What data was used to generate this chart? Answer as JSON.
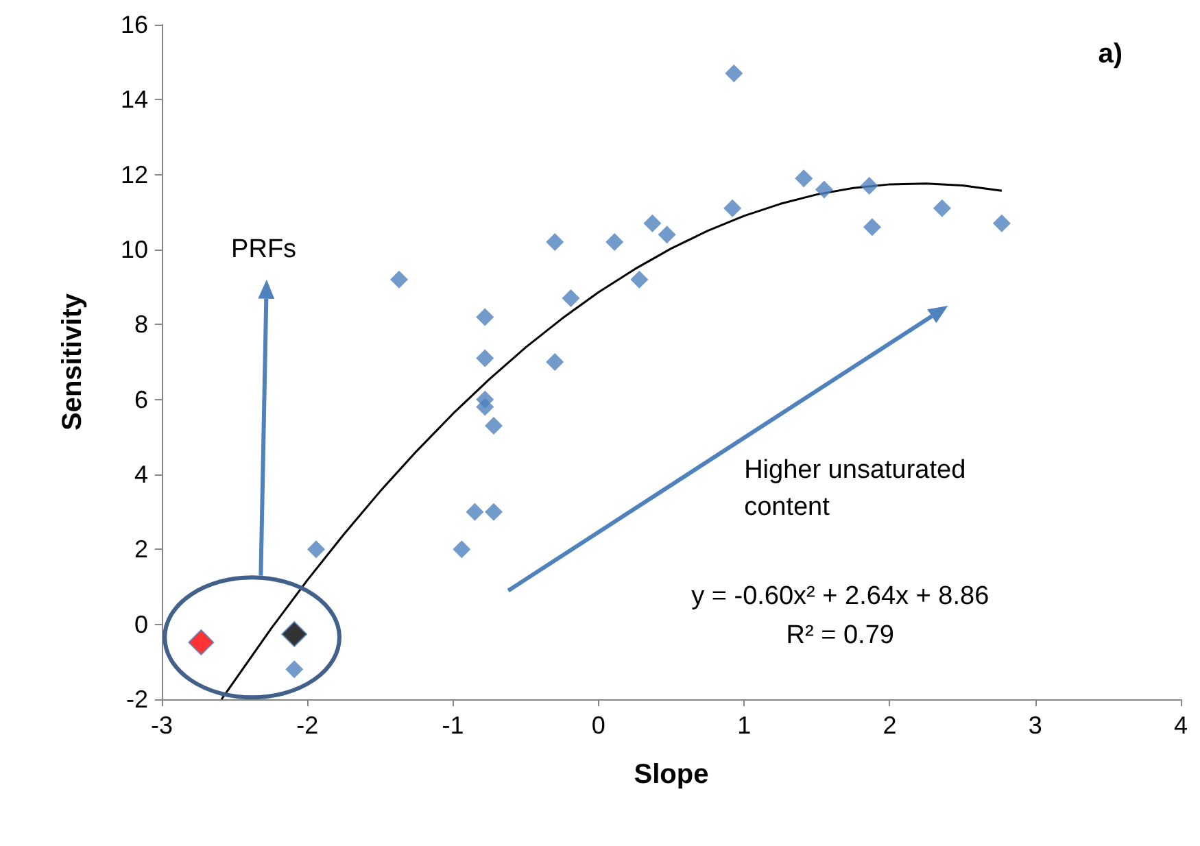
{
  "chart_data": {
    "type": "scatter",
    "xlabel": "Slope",
    "ylabel": "Sensitivity",
    "xlim": [
      -3,
      4
    ],
    "xticks": [
      -3,
      -2,
      -1,
      0,
      1,
      2,
      3,
      4
    ],
    "ylim": [
      -2,
      16
    ],
    "yticks": [
      -2,
      0,
      2,
      4,
      6,
      8,
      10,
      12,
      14,
      16
    ],
    "grid": false,
    "marker": "diamond",
    "series": [
      {
        "color": "#4f81bd",
        "x": [
          -2.09,
          -1.94,
          -1.37,
          -0.94,
          -0.85,
          -0.72,
          -0.78,
          -0.78,
          -0.78,
          -0.78,
          -0.72,
          -0.3,
          -0.3,
          -0.19,
          0.11,
          0.28,
          0.37,
          0.47,
          0.93,
          0.92,
          1.41,
          1.55,
          1.86,
          1.88,
          2.36,
          2.77
        ],
        "values": [
          -1.2,
          2.0,
          9.2,
          2.0,
          3.0,
          3.0,
          8.2,
          7.1,
          6.0,
          5.8,
          5.3,
          7.0,
          10.2,
          8.7,
          10.2,
          9.2,
          10.7,
          10.4,
          14.7,
          11.1,
          11.9,
          11.6,
          11.7,
          10.6,
          11.1,
          10.7
        ]
      },
      {
        "color": "#ff0000",
        "x": [
          -2.73
        ],
        "values": [
          -0.48
        ]
      },
      {
        "color": "#000000",
        "x": [
          -2.09
        ],
        "values": [
          -0.26
        ]
      },
      {
        "type": "line",
        "color": "#000000",
        "marker": "none",
        "line_style": "solid",
        "x": [
          -2.59,
          -2.25,
          -2,
          -1.75,
          -1.5,
          -1.25,
          -1,
          -0.75,
          -0.5,
          -0.25,
          0,
          0.25,
          0.5,
          0.75,
          1,
          1.25,
          1.5,
          1.75,
          2,
          2.25,
          2.5,
          2.77
        ],
        "values": [
          -2.0,
          -0.12,
          1.18,
          2.4,
          3.55,
          4.62,
          5.62,
          6.54,
          7.39,
          8.16,
          8.86,
          9.48,
          10.03,
          10.5,
          10.9,
          11.22,
          11.47,
          11.64,
          11.74,
          11.76,
          11.71,
          11.57
        ]
      }
    ],
    "annotations": [
      "a)",
      "PRFs",
      "Higher unsaturated content",
      "y = -0.60x² + 2.64x + 8.86",
      "R² = 0.79"
    ]
  }
}
